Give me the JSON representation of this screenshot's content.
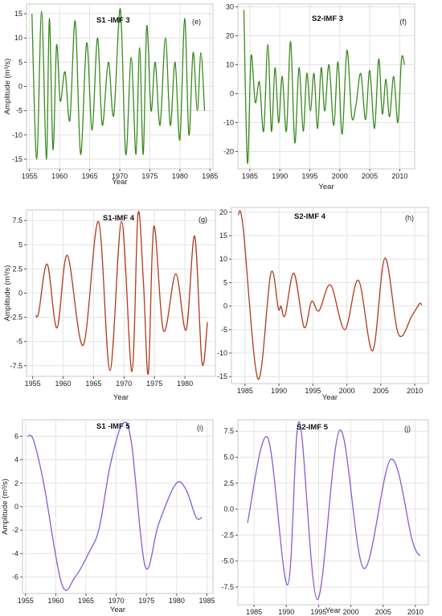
{
  "chart_data": [
    {
      "type": "line",
      "title": "S1 -IMF 3",
      "panel_label": "(e)",
      "ylabel": "Amplitude (m³/s)",
      "xlabel": "Year",
      "xlim": [
        1954.5,
        1985.5
      ],
      "ylim": [
        -17,
        17
      ],
      "xticks": [
        1955,
        1960,
        1965,
        1970,
        1975,
        1980,
        1985
      ],
      "yticks": [
        -15,
        -10,
        -5,
        0,
        5,
        10,
        15
      ],
      "grid": true,
      "color": "#3a8a1e",
      "x": [
        1955.4,
        1956.2,
        1957.0,
        1957.8,
        1958.3,
        1958.9,
        1959.5,
        1960.1,
        1960.9,
        1961.7,
        1962.6,
        1963.5,
        1964.5,
        1965.4,
        1966.3,
        1967.1,
        1968.1,
        1969.0,
        1970.1,
        1971.0,
        1971.9,
        1972.7,
        1973.3,
        1973.9,
        1974.5,
        1975.2,
        1975.9,
        1976.7,
        1977.6,
        1978.4,
        1979.2,
        1980.0,
        1980.8,
        1981.5,
        1982.2,
        1982.9,
        1983.5,
        1984.1
      ],
      "y": [
        15,
        -15,
        15.5,
        -15,
        14,
        -13,
        8.5,
        -3,
        3,
        -7,
        13.5,
        -14,
        9,
        -9,
        10,
        -8,
        5,
        -6,
        16,
        -14,
        6,
        -14,
        8,
        -14,
        12.5,
        -5,
        5,
        -8,
        10,
        -8,
        5,
        -11,
        14,
        -10,
        7,
        -5,
        7,
        -5
      ]
    },
    {
      "type": "line",
      "title": "S2-IMF 3",
      "panel_label": "(f)",
      "xlabel": "Year",
      "xlim": [
        1983,
        2012.5
      ],
      "ylim": [
        -26,
        31
      ],
      "xticks": [
        1985,
        1990,
        1995,
        2000,
        2005,
        2010
      ],
      "yticks": [
        -20,
        -10,
        0,
        10,
        20,
        30
      ],
      "grid": true,
      "color": "#3a8a1e",
      "x": [
        1984.0,
        1984.6,
        1985.2,
        1985.9,
        1986.6,
        1987.3,
        1988.0,
        1988.6,
        1989.2,
        1989.8,
        1990.4,
        1991.1,
        1991.8,
        1992.5,
        1993.2,
        1993.9,
        1994.5,
        1995.1,
        1995.7,
        1996.3,
        1996.9,
        1997.5,
        1998.2,
        1999.0,
        1999.7,
        2000.4,
        2001.2,
        2002.0,
        2002.7,
        2003.5,
        2004.3,
        2005.0,
        2005.8,
        2006.5,
        2007.1,
        2007.7,
        2008.3,
        2009.0,
        2009.7,
        2010.3,
        2010.8
      ],
      "y": [
        29,
        -24,
        13,
        -3,
        4,
        -13,
        17,
        -13,
        9,
        -10,
        6,
        -13,
        18,
        -17,
        9,
        -13,
        7,
        -6,
        7,
        -12,
        9,
        -6,
        10,
        -11,
        11,
        -14,
        15,
        -8,
        -4,
        7,
        -9,
        8,
        -12,
        12,
        -7,
        5,
        -8,
        6,
        -10,
        12,
        10
      ]
    },
    {
      "type": "line",
      "title": "S1-IMF 4",
      "panel_label": "(g)",
      "ylabel": "Amplitude (m³/s)",
      "xlabel": "Year",
      "xlim": [
        1954,
        1985
      ],
      "ylim": [
        -8.6,
        8.6
      ],
      "xticks": [
        1955,
        1960,
        1965,
        1970,
        1975,
        1980
      ],
      "yticks": [
        -7.5,
        -5,
        -2.5,
        0,
        2.5,
        5,
        7.5
      ],
      "grid": true,
      "color": "#b03a1c",
      "x": [
        1955.5,
        1956.0,
        1957.4,
        1959.0,
        1960.7,
        1963.3,
        1965.8,
        1967.7,
        1969.6,
        1971.3,
        1972.3,
        1973.2,
        1974.0,
        1974.9,
        1976.5,
        1978.5,
        1980.2,
        1981.6,
        1982.8,
        1983.7
      ],
      "y": [
        -2.3,
        -2.0,
        3.0,
        -3.6,
        3.9,
        -5.4,
        7.4,
        -8.0,
        7.4,
        -8.1,
        8.2,
        1.0,
        -8.3,
        6.9,
        -3.9,
        2.0,
        -3.8,
        5.9,
        -7.2,
        -3.0
      ]
    },
    {
      "type": "line",
      "title": "S2-IMF 4",
      "panel_label": "(h)",
      "xlabel": "Year",
      "xlim": [
        1983,
        2012
      ],
      "ylim": [
        -16.5,
        21
      ],
      "xticks": [
        1985,
        1990,
        1995,
        2000,
        2005,
        2010
      ],
      "yticks": [
        -15,
        -10,
        -5,
        0,
        5,
        10,
        15,
        20
      ],
      "grid": true,
      "color": "#b03a1c",
      "x": [
        1984.0,
        1984.7,
        1986.9,
        1988.8,
        1989.9,
        1990.3,
        1990.9,
        1992.2,
        1993.7,
        1994.8,
        1995.9,
        1997.6,
        1999.7,
        2001.7,
        2003.8,
        2005.6,
        2007.6,
        2009.6,
        2010.7,
        2011.0
      ],
      "y": [
        19.5,
        17.0,
        -15.5,
        7.0,
        -0.5,
        0,
        -2.0,
        7.0,
        -4.5,
        1.0,
        -1.0,
        4.5,
        -5.0,
        5.5,
        -9.5,
        10.2,
        -6.0,
        -2.0,
        0.5,
        0.2
      ]
    },
    {
      "type": "line",
      "title": "S1 -IMF 5",
      "panel_label": "(i)",
      "ylabel": "Amplitude (m³/s)",
      "xlabel": "Year",
      "xlim": [
        1954.5,
        1986
      ],
      "ylim": [
        -7.4,
        7.4
      ],
      "xticks": [
        1955,
        1960,
        1965,
        1970,
        1975,
        1980,
        1985
      ],
      "yticks": [
        -6,
        -4,
        -2,
        0,
        2,
        4,
        6
      ],
      "grid": true,
      "color": "#8a5ad0",
      "x": [
        1955.3,
        1956.3,
        1958.0,
        1961.0,
        1963.2,
        1965.6,
        1967.2,
        1969.0,
        1971.0,
        1972.5,
        1974.8,
        1977.0,
        1979.8,
        1981.5,
        1983.2,
        1984.2
      ],
      "y": [
        6.0,
        5.7,
        2.0,
        -6.6,
        -6.0,
        -3.8,
        -1.8,
        3.5,
        7.0,
        5.5,
        -5.1,
        -1.5,
        1.9,
        1.5,
        -0.9,
        -0.9
      ]
    },
    {
      "type": "line",
      "title": "S2-IMF 5",
      "panel_label": "(j)",
      "xlabel": "Year",
      "xlim": [
        1982.5,
        2012
      ],
      "ylim": [
        -9.2,
        8.6
      ],
      "xticks": [
        1985,
        1990,
        1995,
        2000,
        2005,
        2010
      ],
      "yticks": [
        -7.5,
        -5.0,
        -2.5,
        0.0,
        2.5,
        5.0,
        7.5
      ],
      "ticklabels_y": [
        "-7.5",
        "-5.0",
        "-2.5",
        "0.0",
        "2.5",
        "5.0",
        "7.5"
      ],
      "grid": true,
      "color": "#8a5ad0",
      "x": [
        1984.0,
        1987.1,
        1990.2,
        1992.0,
        1994.8,
        1998.3,
        2002.0,
        2006.2,
        2009.5,
        2010.7
      ],
      "y": [
        -1.3,
        6.9,
        -7.3,
        8.4,
        -8.7,
        7.6,
        -5.7,
        4.8,
        -3.0,
        -4.5
      ]
    }
  ]
}
